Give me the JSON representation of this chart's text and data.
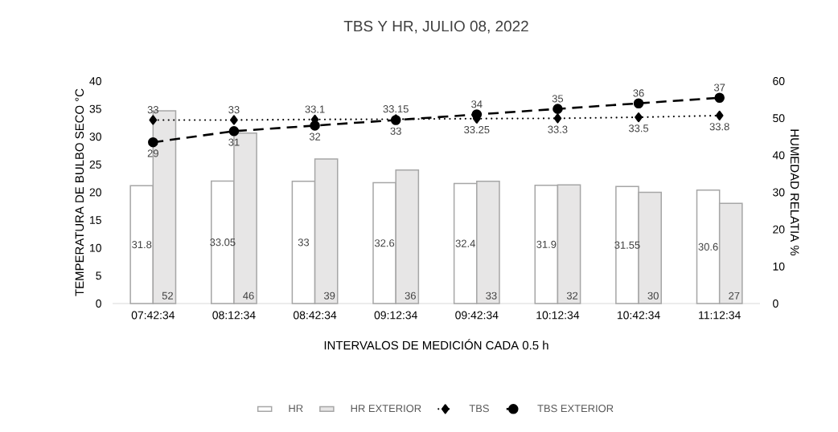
{
  "chart_data": {
    "type": "bar",
    "title": "TBS Y HR, JULIO 08, 2022",
    "xlabel": "INTERVALOS DE MEDICIÓN CADA 0.5 h",
    "ylabel": "TEMPERATURA DE BULBO SECO °C",
    "y2label": "HUMEDAD RELATIA %",
    "categories": [
      "07:42:34",
      "08:12:34",
      "08:42:34",
      "09:12:34",
      "09:42:34",
      "10:12:34",
      "10:42:34",
      "11:12:34"
    ],
    "series": [
      {
        "name": "HR",
        "axis": "y2",
        "color": "#ffffff",
        "values": [
          31.8,
          33.05,
          33,
          32.6,
          32.4,
          31.9,
          31.55,
          30.6
        ]
      },
      {
        "name": "HR EXTERIOR",
        "axis": "y2",
        "color": "#e7e6e6",
        "values": [
          52,
          46,
          39,
          36,
          33,
          32,
          30,
          27
        ]
      },
      {
        "name": "TBS",
        "type": "line",
        "color": "#000000",
        "marker": "diamond",
        "line_style": "dotted",
        "values": [
          33,
          33,
          33.1,
          33.15,
          33.25,
          33.3,
          33.5,
          33.8
        ]
      },
      {
        "name": "TBS EXTERIOR",
        "type": "line",
        "color": "#000000",
        "marker": "circle",
        "line_style": "dashed",
        "values": [
          29,
          31,
          32,
          33,
          34,
          35,
          36,
          37
        ]
      }
    ],
    "ylim": [
      0,
      40
    ],
    "yticks": [
      0,
      5,
      10,
      15,
      20,
      25,
      30,
      35,
      40
    ],
    "y2lim": [
      0,
      60
    ],
    "y2ticks": [
      0,
      10,
      20,
      30,
      40,
      50,
      60
    ],
    "data_labels": true,
    "legend": "bottom"
  }
}
